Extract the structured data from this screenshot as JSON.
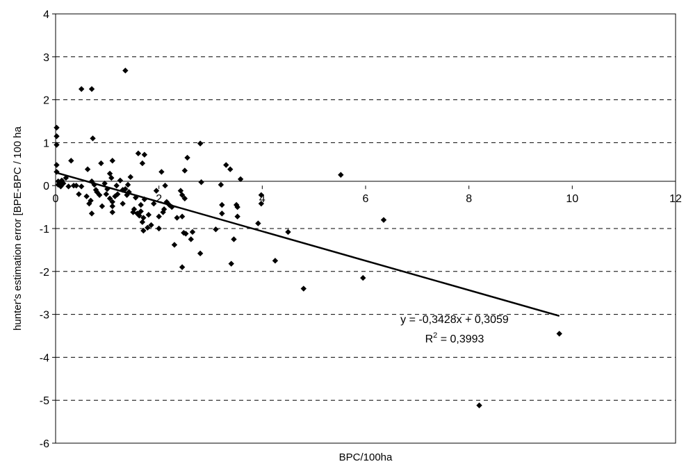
{
  "chart_data": {
    "type": "scatter",
    "title": "",
    "xlabel": "BPC/100ha",
    "ylabel": "hunter's estimation error [BPE-BPC / 100 ha",
    "xlim": [
      0,
      12
    ],
    "ylim": [
      -6,
      4
    ],
    "x_ticks": [
      "0",
      "2",
      "4",
      "6",
      "8",
      "10",
      "12"
    ],
    "y_ticks": [
      "4",
      "3",
      "2",
      "1",
      "0",
      "-1",
      "-2",
      "-3",
      "-4",
      "-5",
      "-6"
    ],
    "grid": "horizontal dashed",
    "legend": "none",
    "marker_color": "#000000",
    "points": [
      [
        0.02,
        1.35
      ],
      [
        0.02,
        1.15
      ],
      [
        0.02,
        0.95
      ],
      [
        0.02,
        0.48
      ],
      [
        0.02,
        0.32
      ],
      [
        0.05,
        0.1
      ],
      [
        0.05,
        0.02
      ],
      [
        0.08,
        0.05
      ],
      [
        0.1,
        -0.02
      ],
      [
        0.12,
        0.12
      ],
      [
        0.15,
        0.05
      ],
      [
        0.2,
        0.18
      ],
      [
        0.25,
        -0.02
      ],
      [
        0.3,
        0.58
      ],
      [
        0.35,
        0.0
      ],
      [
        0.4,
        0.0
      ],
      [
        0.45,
        -0.2
      ],
      [
        0.5,
        -0.02
      ],
      [
        0.6,
        -0.25
      ],
      [
        0.62,
        0.38
      ],
      [
        0.65,
        -0.42
      ],
      [
        0.68,
        -0.35
      ],
      [
        0.7,
        0.1
      ],
      [
        0.7,
        -0.65
      ],
      [
        0.72,
        1.1
      ],
      [
        0.75,
        0.02
      ],
      [
        0.78,
        -0.1
      ],
      [
        0.8,
        -0.15
      ],
      [
        0.85,
        -0.22
      ],
      [
        0.88,
        0.52
      ],
      [
        0.9,
        -0.48
      ],
      [
        0.95,
        0.05
      ],
      [
        0.98,
        -0.2
      ],
      [
        1.0,
        -0.08
      ],
      [
        1.05,
        0.28
      ],
      [
        1.05,
        -0.3
      ],
      [
        1.08,
        0.18
      ],
      [
        1.1,
        -0.38
      ],
      [
        1.1,
        -0.48
      ],
      [
        1.1,
        -0.62
      ],
      [
        1.1,
        0.58
      ],
      [
        1.15,
        -0.25
      ],
      [
        1.18,
        0.0
      ],
      [
        1.2,
        -0.2
      ],
      [
        1.25,
        0.12
      ],
      [
        1.3,
        -0.1
      ],
      [
        1.3,
        -0.42
      ],
      [
        1.35,
        -0.08
      ],
      [
        1.38,
        -0.22
      ],
      [
        1.4,
        0.02
      ],
      [
        1.42,
        -0.15
      ],
      [
        1.45,
        0.2
      ],
      [
        1.5,
        -0.62
      ],
      [
        1.52,
        -0.55
      ],
      [
        1.55,
        -0.28
      ],
      [
        1.58,
        -0.65
      ],
      [
        1.6,
        0.75
      ],
      [
        1.62,
        -0.7
      ],
      [
        1.65,
        -0.45
      ],
      [
        1.65,
        -0.6
      ],
      [
        1.68,
        0.52
      ],
      [
        1.68,
        -0.85
      ],
      [
        1.7,
        -0.75
      ],
      [
        1.7,
        -1.05
      ],
      [
        1.72,
        0.72
      ],
      [
        1.72,
        -0.32
      ],
      [
        1.78,
        -0.98
      ],
      [
        1.8,
        -0.68
      ],
      [
        1.85,
        -0.92
      ],
      [
        1.9,
        -0.42
      ],
      [
        1.95,
        -0.12
      ],
      [
        2.0,
        -0.72
      ],
      [
        2.0,
        -1.0
      ],
      [
        2.05,
        0.32
      ],
      [
        2.08,
        -0.62
      ],
      [
        2.1,
        -0.55
      ],
      [
        2.12,
        0.0
      ],
      [
        2.15,
        -0.38
      ],
      [
        2.2,
        -0.45
      ],
      [
        2.25,
        -0.5
      ],
      [
        2.3,
        -1.38
      ],
      [
        2.35,
        -0.75
      ],
      [
        2.42,
        -0.12
      ],
      [
        2.45,
        -0.22
      ],
      [
        2.45,
        -0.72
      ],
      [
        2.48,
        -1.1
      ],
      [
        2.5,
        -0.3
      ],
      [
        2.5,
        0.35
      ],
      [
        2.52,
        -1.12
      ],
      [
        2.55,
        0.65
      ],
      [
        2.62,
        -1.25
      ],
      [
        2.65,
        -1.08
      ],
      [
        2.8,
        0.98
      ],
      [
        2.82,
        0.08
      ],
      [
        2.8,
        -1.58
      ],
      [
        3.1,
        -1.02
      ],
      [
        3.2,
        0.02
      ],
      [
        3.22,
        -0.45
      ],
      [
        3.22,
        -0.65
      ],
      [
        3.3,
        0.48
      ],
      [
        3.38,
        0.38
      ],
      [
        3.4,
        -1.82
      ],
      [
        3.45,
        -1.25
      ],
      [
        3.5,
        -0.45
      ],
      [
        3.52,
        -0.5
      ],
      [
        3.52,
        -0.72
      ],
      [
        3.58,
        0.15
      ],
      [
        3.92,
        -0.88
      ],
      [
        3.98,
        -0.42
      ],
      [
        3.98,
        -0.22
      ],
      [
        4.25,
        -1.75
      ],
      [
        4.5,
        -1.08
      ],
      [
        4.8,
        -2.4
      ],
      [
        5.52,
        0.25
      ],
      [
        5.95,
        -2.15
      ],
      [
        6.35,
        -0.8
      ],
      [
        0.5,
        2.25
      ],
      [
        0.7,
        2.25
      ],
      [
        1.35,
        2.68
      ],
      [
        2.45,
        -1.9
      ],
      [
        9.75,
        -3.45
      ],
      [
        8.2,
        -5.12
      ]
    ],
    "trendline": {
      "slope": -0.3428,
      "intercept": 0.3059,
      "x_start": 0,
      "x_end": 9.75
    },
    "annotations": {
      "equation": "y = -0,3428x + 0,3059",
      "r2_prefix": "R",
      "r2_sup": "2",
      "r2_suffix": " = 0,3993"
    }
  }
}
